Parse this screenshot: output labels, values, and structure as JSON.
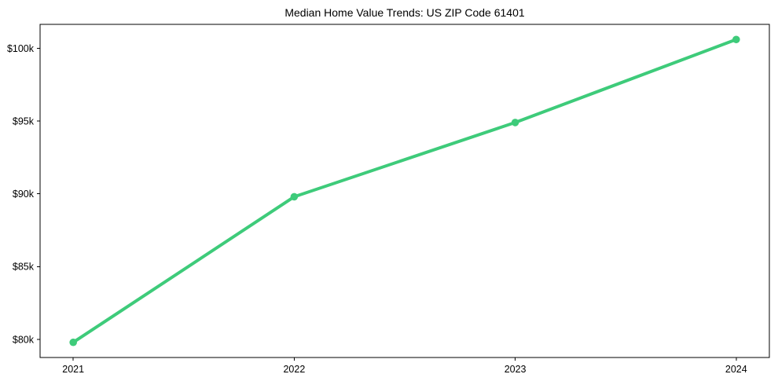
{
  "page": {
    "background_color": "#ffffff",
    "text_color": "#000000",
    "axis_color": "#000000"
  },
  "chart_data": {
    "type": "line",
    "title": "Median Home Value Trends: US ZIP Code 61401",
    "x": [
      2021,
      2022,
      2023,
      2024
    ],
    "x_tick_labels": [
      "2021",
      "2022",
      "2023",
      "2024"
    ],
    "values": [
      79800,
      89800,
      94900,
      100600
    ],
    "y_tick_values": [
      80000,
      85000,
      90000,
      95000,
      100000
    ],
    "y_tick_labels": [
      "$80k",
      "$85k",
      "$90k",
      "$95k",
      "$100k"
    ],
    "xlabel": "",
    "ylabel": "",
    "xlim": [
      2020.85,
      2024.15
    ],
    "ylim": [
      78760,
      101640
    ],
    "x_margin_frac": 0.05,
    "y_margin_frac": 0.05,
    "grid": false,
    "legend_position": "none",
    "line_color": "#3ecb7a",
    "marker": "circle",
    "line_width": 4,
    "marker_radius": 4.8
  }
}
